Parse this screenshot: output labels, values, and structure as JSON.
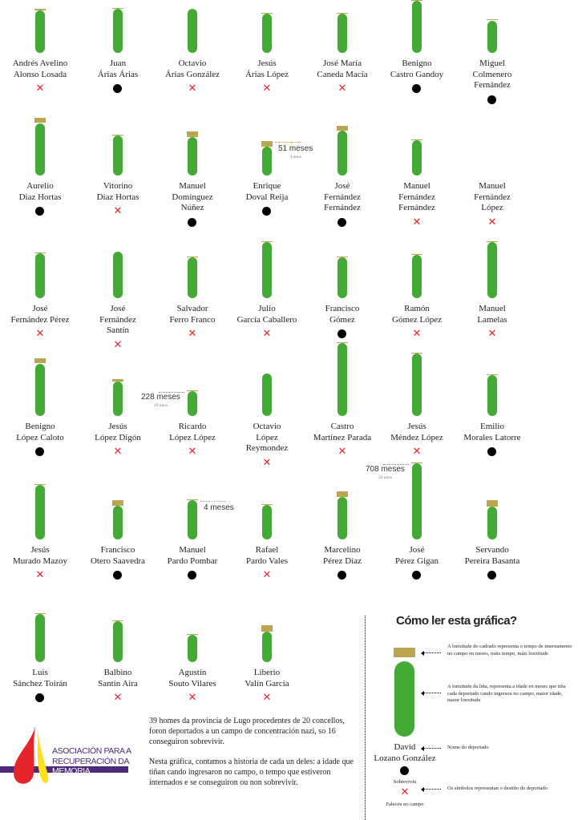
{
  "colors": {
    "age_bar": "#43aa36",
    "internment_box": "#bba452",
    "survived": "#000000",
    "died": "#e5242b"
  },
  "chart_data": {
    "type": "bar",
    "encoding": "line length = age in months at entry; box length = months interned; symbol = fate",
    "people": [
      {
        "name": [
          "Andrés Avelino",
          "Alonso Losada"
        ],
        "age_months": 395,
        "internment_months": 15,
        "survived": false
      },
      {
        "name": [
          "Juan",
          "Árias Árias"
        ],
        "age_months": 410,
        "internment_months": 7,
        "survived": true
      },
      {
        "name": [
          "Octavio",
          "Árias González"
        ],
        "age_months": 410,
        "internment_months": 0,
        "survived": false
      },
      {
        "name": [
          "Jesús",
          "Árias López"
        ],
        "age_months": 365,
        "internment_months": 7,
        "survived": false
      },
      {
        "name": [
          "José María",
          "Caneda Macía"
        ],
        "age_months": 365,
        "internment_months": 7,
        "survived": false
      },
      {
        "name": [
          "Benigno",
          "Castro Gandoy"
        ],
        "age_months": 485,
        "internment_months": 7,
        "survived": true
      },
      {
        "name": [
          "Miguel",
          "Colmenero",
          "Fernández"
        ],
        "age_months": 300,
        "internment_months": 7,
        "survived": true
      },
      {
        "name": [
          "Aurelio",
          "Díaz Hortas"
        ],
        "age_months": 485,
        "internment_months": 52,
        "survived": true
      },
      {
        "name": [
          "Vitorino",
          "Díaz Hortas"
        ],
        "age_months": 373,
        "internment_months": 7,
        "survived": false
      },
      {
        "name": [
          "Manuel",
          "Domínguez",
          "Núñez"
        ],
        "age_months": 358,
        "internment_months": 45,
        "survived": true
      },
      {
        "name": [
          "Enrique",
          "Doval Reija"
        ],
        "age_months": 268,
        "internment_months": 51,
        "survived": true
      },
      {
        "name": [
          "José",
          "Fernández",
          "Fernández"
        ],
        "age_months": 417,
        "internment_months": 45,
        "survived": true
      },
      {
        "name": [
          "Manuel",
          "Fernández",
          "Fernández"
        ],
        "age_months": 328,
        "internment_months": 7,
        "survived": false
      },
      {
        "name": [
          "Manuel",
          "Fernández",
          "López"
        ],
        "age_months": 0,
        "internment_months": 0,
        "survived": false
      },
      {
        "name": [
          "José",
          "Fernández Pérez"
        ],
        "age_months": 417,
        "internment_months": 7,
        "survived": false
      },
      {
        "name": [
          "José",
          "Fernández",
          "Santín"
        ],
        "age_months": 432,
        "internment_months": 0,
        "survived": false
      },
      {
        "name": [
          "Salvador",
          "Ferro Franco"
        ],
        "age_months": 380,
        "internment_months": 7,
        "survived": false
      },
      {
        "name": [
          "Julio",
          "García Caballero"
        ],
        "age_months": 522,
        "internment_months": 7,
        "survived": false
      },
      {
        "name": [
          "Francisco",
          "Gómez"
        ],
        "age_months": 380,
        "internment_months": 7,
        "survived": true
      },
      {
        "name": [
          "Ramón",
          "Gómez López"
        ],
        "age_months": 402,
        "internment_months": 7,
        "survived": false
      },
      {
        "name": [
          "Manuel",
          "Lamelas"
        ],
        "age_months": 522,
        "internment_months": 7,
        "survived": false
      },
      {
        "name": [
          "Benigno",
          "López Caloto"
        ],
        "age_months": 485,
        "internment_months": 52,
        "survived": true
      },
      {
        "name": [
          "Jesús",
          "López Digón"
        ],
        "age_months": 320,
        "internment_months": 22,
        "survived": false
      },
      {
        "name": [
          "Ricardo",
          "López López"
        ],
        "age_months": 228,
        "internment_months": 7,
        "survived": false
      },
      {
        "name": [
          "Octavio",
          "López",
          "Reymondez"
        ],
        "age_months": 395,
        "internment_months": 0,
        "survived": false
      },
      {
        "name": [
          "Castro",
          "Martínez Parada"
        ],
        "age_months": 678,
        "internment_months": 7,
        "survived": false
      },
      {
        "name": [
          "Jesús",
          "Méndez López"
        ],
        "age_months": 581,
        "internment_months": 7,
        "survived": false
      },
      {
        "name": [
          "Emilio",
          "Morales Latorre"
        ],
        "age_months": 380,
        "internment_months": 7,
        "survived": true
      },
      {
        "name": [
          "Jesús",
          "Murado Mazoy"
        ],
        "age_months": 507,
        "internment_months": 7,
        "survived": false
      },
      {
        "name": [
          "Francisco",
          "Otero Saavedra"
        ],
        "age_months": 313,
        "internment_months": 52,
        "survived": true
      },
      {
        "name": [
          "Manuel",
          "Pardo Pombar"
        ],
        "age_months": 365,
        "internment_months": 4,
        "survived": true
      },
      {
        "name": [
          "Rafael",
          "Pardo Vales"
        ],
        "age_months": 320,
        "internment_months": 7,
        "survived": false
      },
      {
        "name": [
          "Marcelino",
          "Pérez Díaz"
        ],
        "age_months": 395,
        "internment_months": 52,
        "survived": true
      },
      {
        "name": [
          "José",
          "Pérez Gigan"
        ],
        "age_months": 708,
        "internment_months": 7,
        "survived": true
      },
      {
        "name": [
          "Servando",
          "Pereira Basanta"
        ],
        "age_months": 305,
        "internment_months": 60,
        "survived": true
      },
      {
        "name": [
          "Luis",
          "Sánchez Toirán"
        ],
        "age_months": 447,
        "internment_months": 7,
        "survived": true
      },
      {
        "name": [
          "Balbino",
          "Santín Aira"
        ],
        "age_months": 380,
        "internment_months": 7,
        "survived": false
      },
      {
        "name": [
          "Agustín",
          "Souto Vilares"
        ],
        "age_months": 253,
        "internment_months": 7,
        "survived": false
      },
      {
        "name": [
          "Liberio",
          "Valín García"
        ],
        "age_months": 283,
        "internment_months": 60,
        "survived": false
      }
    ],
    "annotations": [
      {
        "person": "Enrique Doval Reija",
        "label": "51 meses",
        "sub": "4 anos",
        "target": "internment"
      },
      {
        "person": "Ricardo López López",
        "label": "228 meses",
        "sub": "19 anos",
        "target": "age"
      },
      {
        "person": "Manuel Pardo Pombar",
        "label": "4 meses",
        "sub": "",
        "target": "internment"
      },
      {
        "person": "José Pérez Gigan",
        "label": "708 meses",
        "sub": "59 anos",
        "target": "age"
      }
    ]
  },
  "intro": {
    "p1": "39 homes da provincia de Lugo procedentes de 20 concellos, foron deportados a un campo de concentración nazi, so 16 conseguiron sobrevivir.",
    "p2": "Nesta gráfica, contamos a historia de cada un deles: a idade que tiñan cando ingresaron no campo, o tempo que estiveron internados e se conseguiron ou non sobrevivir."
  },
  "logo": {
    "line1": "ASOCIACIÓN PARA A",
    "line2": "RECUPERACIÓN DA",
    "line3": "MEMORIA HISTÓRICA"
  },
  "legend": {
    "title": "Cómo ler esta gráfica?",
    "box_text": "A lonxitude do cadrado representa o tempo de internamento no campo en meses, máis tempo, máis lonxitude",
    "bar_text": "A lonxitude da liña, representa a idade en meses que tiña cada deportado cando ingresou no campo, maior idade, maior lonxitude",
    "example_name_1": "David",
    "example_name_2": "Lozano González",
    "name_text": "Nome do deportado",
    "survived_label": "Sobreviviu",
    "died_label": "Faleceu no campo",
    "symbols_text": "Os símbolos representan o destiño do deportado"
  }
}
